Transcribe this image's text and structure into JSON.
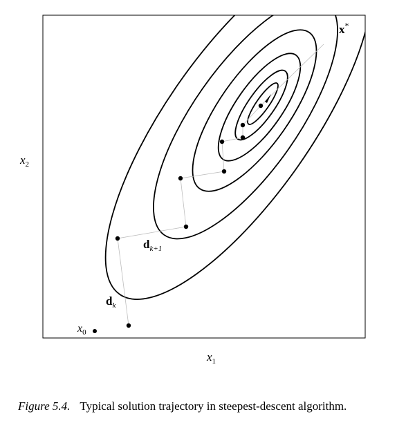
{
  "labels": {
    "x_axis": "x",
    "x_axis_sub": "1",
    "y_axis": "x",
    "y_axis_sub": "2",
    "start_point": "x",
    "start_point_sub": "0",
    "optimum": "x",
    "optimum_sup": "*",
    "dir_k": "d",
    "dir_k_sub": "k",
    "dir_k1": "d",
    "dir_k1_sub": "k+1"
  },
  "caption": {
    "number": "Figure 5.4.",
    "text": "Typical solution trajectory in steepest-descent algorithm."
  }
}
